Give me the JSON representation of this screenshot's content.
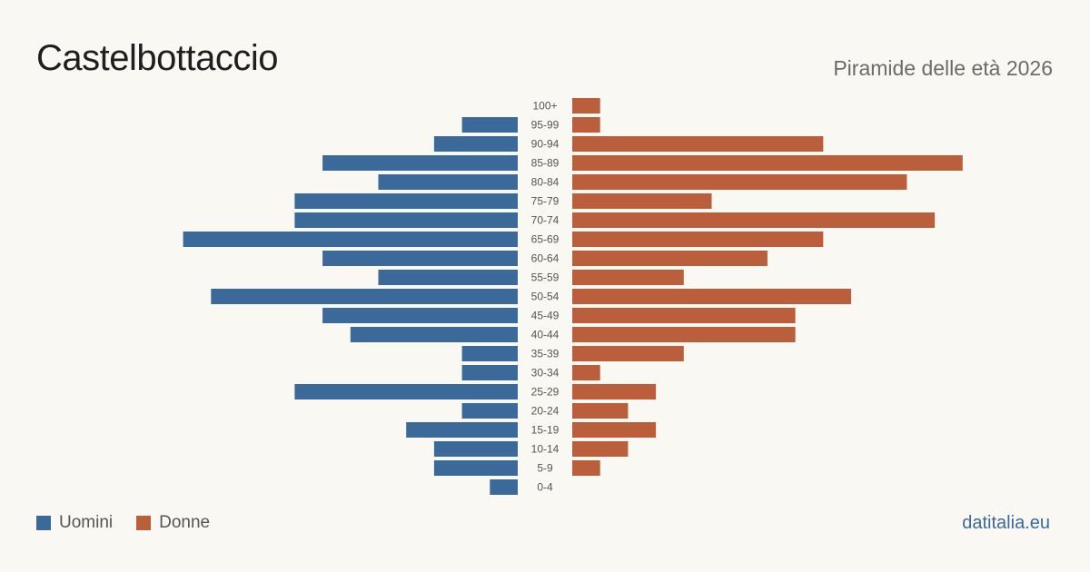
{
  "header": {
    "title": "Castelbottaccio",
    "subtitle": "Piramide delle età 2026"
  },
  "legend": {
    "men_label": "Uomini",
    "women_label": "Donne"
  },
  "brand": "datitalia.eu",
  "colors": {
    "men": "#3b6a9a",
    "women": "#bb5e3c",
    "background": "#faf8f3"
  },
  "chart_data": {
    "type": "bar",
    "orientation": "horizontal-pyramid",
    "categories": [
      "100+",
      "95-99",
      "90-94",
      "85-89",
      "80-84",
      "75-79",
      "70-74",
      "65-69",
      "60-64",
      "55-59",
      "50-54",
      "45-49",
      "40-44",
      "35-39",
      "30-34",
      "25-29",
      "20-24",
      "15-19",
      "10-14",
      "5-9",
      "0-4"
    ],
    "series": [
      {
        "name": "Uomini",
        "values": [
          0,
          2,
          3,
          7,
          5,
          8,
          8,
          12,
          7,
          5,
          11,
          7,
          6,
          2,
          2,
          8,
          2,
          4,
          3,
          3,
          1
        ]
      },
      {
        "name": "Donne",
        "values": [
          1,
          1,
          9,
          14,
          12,
          5,
          13,
          9,
          7,
          4,
          10,
          8,
          8,
          4,
          1,
          3,
          2,
          3,
          2,
          1,
          0
        ]
      }
    ],
    "xlim": [
      0,
      14
    ],
    "grid": false,
    "legend_position": "bottom-left"
  }
}
